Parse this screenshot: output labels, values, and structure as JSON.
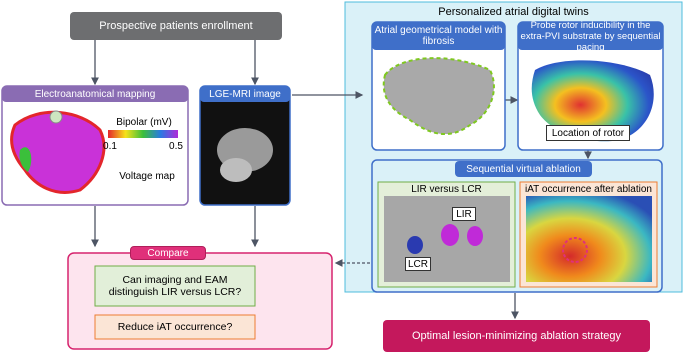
{
  "enrollment": "Prospective patients enrollment",
  "eam": {
    "title": "Electroanatomical mapping",
    "colorbar_title": "Bipolar (mV)",
    "colorbar_min": 0.1,
    "colorbar_max": 0.5,
    "caption": "Voltage map"
  },
  "mri": {
    "title": "LGE-MRI image"
  },
  "digital_twins": {
    "title": "Personalized atrial digital twins",
    "model": {
      "title": "Atrial geometrical model with fibrosis"
    },
    "rotor": {
      "title": "Probe rotor inducibility in the extra-PVI substrate by sequential pacing",
      "label": "Location of rotor"
    },
    "ablation": {
      "title": "Sequential virtual ablation",
      "lir_lcr": {
        "title": "LIR versus LCR",
        "labels": [
          "LIR",
          "LCR"
        ]
      },
      "iat": {
        "title": "iAT occurrence after ablation"
      }
    }
  },
  "compare": {
    "title": "Compare",
    "questions": [
      "Can imaging and EAM distinguish LIR versus LCR?",
      "Reduce iAT occurrence?"
    ]
  },
  "outcome": "Optimal lesion-minimizing ablation strategy"
}
